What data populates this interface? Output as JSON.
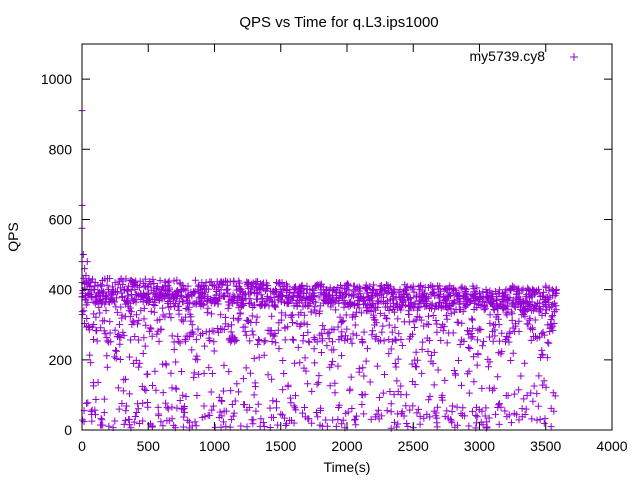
{
  "chart_data": {
    "type": "scatter",
    "title": "QPS vs Time for q.L3.ips1000",
    "xlabel": "Time(s)",
    "ylabel": "QPS",
    "xlim": [
      0,
      4000
    ],
    "ylim": [
      0,
      1100
    ],
    "xticks": [
      "0",
      "500",
      "1000",
      "1500",
      "2000",
      "2500",
      "3000",
      "3500",
      "4000"
    ],
    "yticks": [
      "0",
      "200",
      "400",
      "600",
      "800",
      "1000"
    ],
    "grid": false,
    "legend_position": "top-right",
    "marker": "plus",
    "color": "#9400d3",
    "series": [
      {
        "name": "my5739.cy8",
        "x": [
          0,
          0,
          0,
          0,
          0,
          0,
          10,
          20,
          30,
          40,
          50,
          60,
          70,
          80,
          90,
          100,
          120,
          150,
          180,
          200,
          250,
          300,
          350,
          400,
          450,
          500,
          550,
          600,
          650,
          700,
          750,
          800,
          850,
          900,
          950,
          1000,
          1050,
          1100,
          1150,
          1200,
          1250,
          1300,
          1350,
          1400,
          1450,
          1500,
          1550,
          1600,
          1650,
          1700,
          1750,
          1800,
          1850,
          1900,
          1950,
          2000,
          2050,
          2100,
          2150,
          2200,
          2250,
          2300,
          2350,
          2400,
          2450,
          2500,
          2550,
          2600,
          2650,
          2700,
          2750,
          2800,
          2850,
          2900,
          2950,
          3000,
          3050,
          3100,
          3150,
          3200,
          3250,
          3300,
          3350,
          3400,
          3450,
          3500,
          3550,
          3580
        ],
        "y": [
          910,
          640,
          575,
          480,
          420,
          380,
          500,
          460,
          440,
          480,
          420,
          410,
          380,
          430,
          400,
          420,
          390,
          410,
          380,
          400,
          420,
          390,
          410,
          400,
          380,
          410,
          390,
          400,
          420,
          380,
          400,
          410,
          390,
          400,
          380,
          410,
          400,
          390,
          380,
          400,
          410,
          390,
          400,
          380,
          390,
          400,
          410,
          390,
          380,
          400,
          390,
          410,
          380,
          400,
          390,
          400,
          410,
          380,
          390,
          400,
          410,
          390,
          380,
          400,
          390,
          410,
          400,
          380,
          390,
          410,
          400,
          390,
          380,
          400,
          410,
          390,
          400,
          380,
          390,
          400,
          410,
          390,
          380,
          400,
          390,
          410,
          400,
          390
        ]
      }
    ],
    "distribution_note": ""
  }
}
